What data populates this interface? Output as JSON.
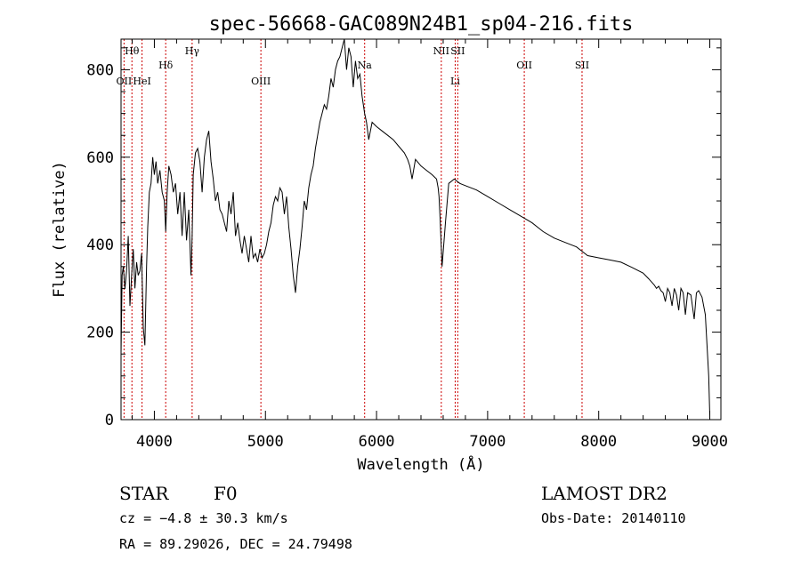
{
  "chart_data": {
    "type": "line",
    "title": "spec-56668-GAC089N24B1_sp04-216.fits",
    "xlabel": "Wavelength (Å)",
    "ylabel": "Flux (relative)",
    "xlim": [
      3700,
      9100
    ],
    "ylim": [
      0,
      870
    ],
    "x_ticks": [
      4000,
      5000,
      6000,
      7000,
      8000,
      9000
    ],
    "y_ticks": [
      0,
      200,
      400,
      600,
      800
    ],
    "grid": false,
    "series": [
      {
        "x": [
          3700,
          3710,
          3720,
          3735,
          3750,
          3765,
          3780,
          3795,
          3810,
          3825,
          3840,
          3855,
          3870,
          3885,
          3900,
          3915,
          3930,
          3940,
          3955,
          3970,
          3985,
          4000,
          4015,
          4030,
          4050,
          4070,
          4090,
          4102,
          4115,
          4130,
          4150,
          4170,
          4190,
          4210,
          4230,
          4250,
          4270,
          4290,
          4310,
          4330,
          4340,
          4350,
          4370,
          4390,
          4410,
          4430,
          4450,
          4470,
          4490,
          4510,
          4530,
          4550,
          4570,
          4590,
          4610,
          4630,
          4650,
          4670,
          4690,
          4710,
          4730,
          4750,
          4770,
          4790,
          4810,
          4830,
          4850,
          4870,
          4890,
          4910,
          4930,
          4950,
          4970,
          4990,
          5010,
          5030,
          5050,
          5070,
          5090,
          5110,
          5130,
          5150,
          5170,
          5190,
          5210,
          5230,
          5250,
          5270,
          5290,
          5310,
          5330,
          5350,
          5370,
          5390,
          5410,
          5430,
          5450,
          5470,
          5490,
          5510,
          5530,
          5550,
          5570,
          5590,
          5610,
          5630,
          5650,
          5670,
          5690,
          5710,
          5730,
          5750,
          5770,
          5790,
          5810,
          5830,
          5850,
          5870,
          5893,
          5910,
          5930,
          5960,
          6000,
          6050,
          6100,
          6150,
          6200,
          6250,
          6280,
          6300,
          6320,
          6350,
          6400,
          6450,
          6500,
          6540,
          6555,
          6563,
          6572,
          6590,
          6620,
          6650,
          6700,
          6750,
          6800,
          6900,
          7000,
          7100,
          7200,
          7300,
          7400,
          7500,
          7600,
          7700,
          7800,
          7850,
          7900,
          8000,
          8100,
          8200,
          8300,
          8400,
          8450,
          8500,
          8520,
          8540,
          8560,
          8580,
          8600,
          8620,
          8640,
          8660,
          8680,
          8700,
          8720,
          8740,
          8760,
          8780,
          8800,
          8830,
          8860,
          8880,
          8900,
          8930,
          8960,
          8990,
          9000
        ],
        "y": [
          150,
          330,
          350,
          300,
          340,
          420,
          260,
          330,
          390,
          300,
          360,
          330,
          340,
          380,
          210,
          170,
          350,
          440,
          520,
          540,
          600,
          560,
          590,
          540,
          570,
          520,
          500,
          430,
          520,
          580,
          560,
          520,
          540,
          470,
          520,
          420,
          520,
          410,
          480,
          330,
          420,
          560,
          610,
          620,
          590,
          520,
          600,
          640,
          660,
          590,
          550,
          500,
          520,
          480,
          470,
          450,
          430,
          500,
          470,
          520,
          420,
          450,
          410,
          380,
          420,
          390,
          360,
          420,
          370,
          380,
          360,
          390,
          370,
          380,
          400,
          430,
          450,
          490,
          510,
          500,
          530,
          520,
          470,
          510,
          440,
          390,
          330,
          290,
          350,
          390,
          440,
          500,
          480,
          530,
          560,
          580,
          620,
          650,
          680,
          700,
          720,
          710,
          740,
          780,
          760,
          800,
          820,
          830,
          850,
          870,
          800,
          850,
          830,
          760,
          820,
          780,
          790,
          740,
          700,
          680,
          640,
          680,
          670,
          660,
          650,
          640,
          625,
          610,
          595,
          580,
          550,
          595,
          580,
          570,
          560,
          550,
          530,
          510,
          460,
          350,
          450,
          540,
          550,
          540,
          535,
          525,
          510,
          495,
          480,
          465,
          450,
          430,
          415,
          405,
          395,
          385,
          375,
          370,
          365,
          360,
          348,
          335,
          322,
          308,
          300,
          305,
          295,
          290,
          270,
          300,
          290,
          260,
          300,
          285,
          250,
          300,
          290,
          240,
          290,
          285,
          230,
          290,
          295,
          280,
          240,
          100,
          10
        ]
      }
    ],
    "lines": [
      {
        "label": "Hθ",
        "x": 3798,
        "row": 1
      },
      {
        "label": "OII",
        "x": 3727,
        "row": 2
      },
      {
        "label": "HeI",
        "x": 3889,
        "row": 2
      },
      {
        "label": "Hδ",
        "x": 4102,
        "row": 3
      },
      {
        "label": "Hγ",
        "x": 4340,
        "row": 1
      },
      {
        "label": "OIII",
        "x": 4959,
        "row": 2
      },
      {
        "label": "Na",
        "x": 5893,
        "row": 3
      },
      {
        "label": "NII",
        "x": 6583,
        "row": 1
      },
      {
        "label": "Li",
        "x": 6708,
        "row": 2
      },
      {
        "label": "SII",
        "x": 6731,
        "row": 1
      },
      {
        "label": "OII",
        "x": 7330,
        "row": 3
      },
      {
        "label": "SII",
        "x": 7850,
        "row": 3
      }
    ]
  },
  "footer": {
    "object_type": "STAR",
    "subclass": "F0",
    "cz": "cz = −4.8 ± 30.3 km/s",
    "coords": "RA =  89.29026, DEC =  24.79498",
    "survey": "LAMOST DR2",
    "obs_date": "Obs-Date: 20140110"
  },
  "colors": {
    "spectrum": "#000000",
    "line_markers": "#cc0000",
    "axes": "#000000"
  }
}
